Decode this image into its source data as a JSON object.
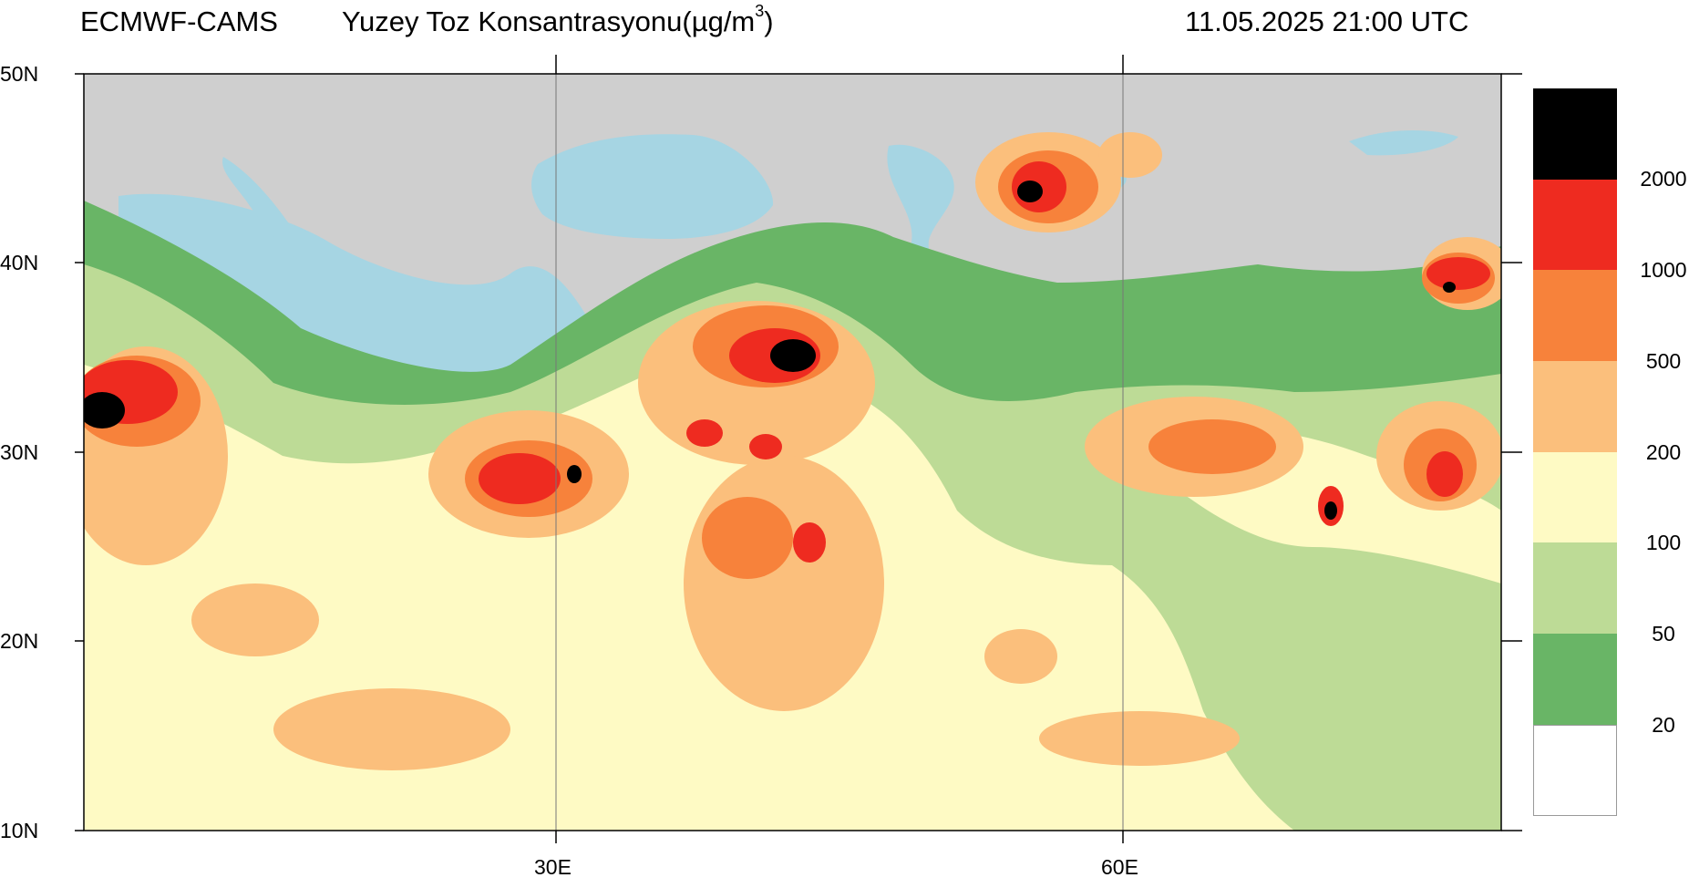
{
  "header": {
    "source": "ECMWF-CAMS",
    "title": "Yuzey Toz Konsantrasyonu(µg/m",
    "title_sup": "3",
    "title_end": ")",
    "datetime": "11.05.2025 21:00 UTC"
  },
  "axes": {
    "lat_labels": [
      "50N",
      "40N",
      "30N",
      "20N",
      "10N"
    ],
    "lon_labels": [
      "30E",
      "60E"
    ]
  },
  "legend": {
    "levels": [
      {
        "label": "2000",
        "color": "#000000"
      },
      {
        "label": "1000",
        "color": "#ee2b20"
      },
      {
        "label": "500",
        "color": "#f7823b"
      },
      {
        "label": "200",
        "color": "#fbbf7c"
      },
      {
        "label": "100",
        "color": "#fefac4"
      },
      {
        "label": "50",
        "color": "#bddb96"
      },
      {
        "label": "20",
        "color": "#69b566"
      },
      {
        "label": "",
        "color": "#ffffff"
      }
    ]
  },
  "colors": {
    "land": "#cfcfcf",
    "sea": "#a6d5e3"
  }
}
